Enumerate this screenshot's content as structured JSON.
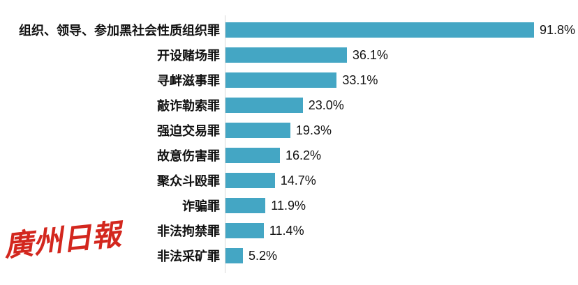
{
  "chart_data": {
    "type": "bar",
    "orientation": "horizontal",
    "title": "",
    "xlabel": "",
    "ylabel": "",
    "legend": "none",
    "grid": false,
    "xlim": [
      0,
      100
    ],
    "unit": "%",
    "bar_color": "#44A6C4",
    "axis_color": "#D9D9D9",
    "text_color": "#111111",
    "categories": [
      "组织、领导、参加黑社会性质组织罪",
      "开设赌场罪",
      "寻衅滋事罪",
      "敲诈勒索罪",
      "强迫交易罪",
      "故意伤害罪",
      "聚众斗殴罪",
      "诈骗罪",
      "非法拘禁罪",
      "非法采矿罪"
    ],
    "values": [
      91.8,
      36.1,
      33.1,
      23.0,
      19.3,
      16.2,
      14.7,
      11.9,
      11.4,
      5.2
    ],
    "value_labels": [
      "91.8%",
      "36.1%",
      "33.1%",
      "23.0%",
      "19.3%",
      "16.2%",
      "14.7%",
      "11.9%",
      "11.4%",
      "5.2%"
    ]
  },
  "watermark": {
    "text": "廣州日報",
    "color": "#D3271E"
  }
}
